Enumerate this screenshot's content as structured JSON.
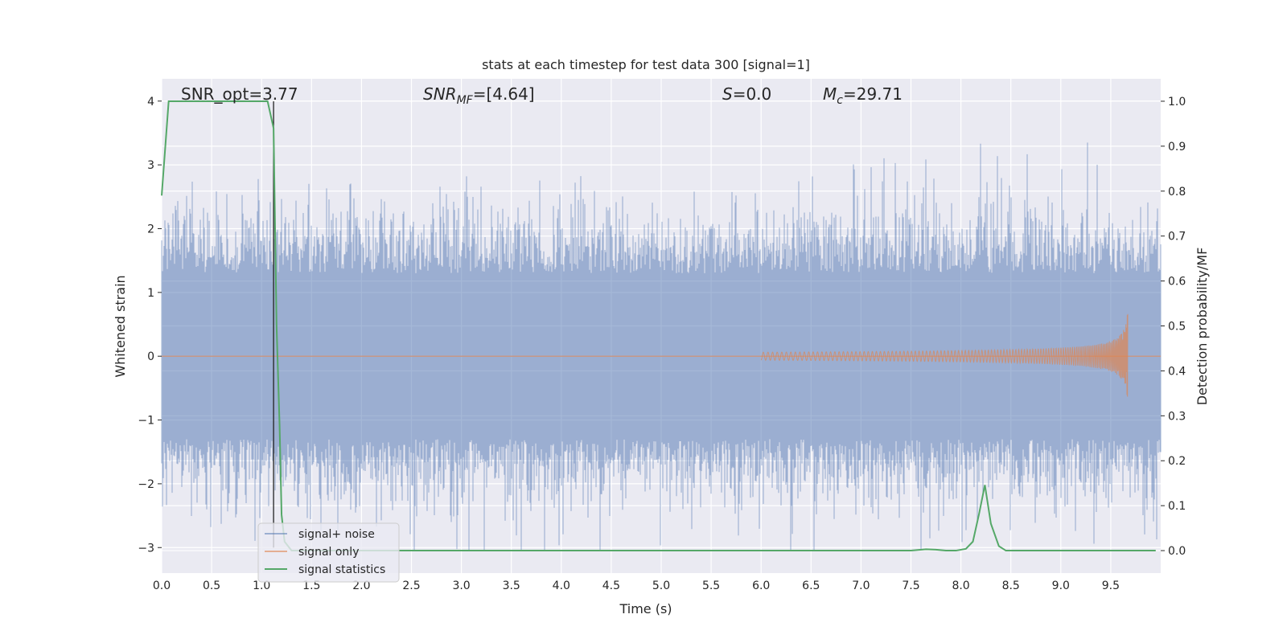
{
  "chart_data": {
    "type": "line",
    "title": "stats at each timestep for test data 300 [signal=1]",
    "xlabel": "Time (s)",
    "ylabel_left": "Whitened strain",
    "ylabel_right": "Detection probability/MF",
    "xlim": [
      0.0,
      10.0
    ],
    "ylim_left": [
      -3.4,
      4.35
    ],
    "ylim_right": [
      -0.05,
      1.05
    ],
    "x_ticks": [
      "0.0",
      "0.5",
      "1.0",
      "1.5",
      "2.0",
      "2.5",
      "3.0",
      "3.5",
      "4.0",
      "4.5",
      "5.0",
      "5.5",
      "6.0",
      "6.5",
      "7.0",
      "7.5",
      "8.0",
      "8.5",
      "9.0",
      "9.5"
    ],
    "y_ticks_left": [
      "−3",
      "−2",
      "−1",
      "0",
      "1",
      "2",
      "3",
      "4"
    ],
    "y_ticks_right": [
      "0.0",
      "0.1",
      "0.2",
      "0.3",
      "0.4",
      "0.5",
      "0.6",
      "0.7",
      "0.8",
      "0.9",
      "1.0"
    ],
    "grid": true,
    "legend_position": "bottom-left",
    "annotations": {
      "snr_opt": "SNR_opt=3.77",
      "snr_mf_label": "SNR",
      "snr_mf_sub": "MF",
      "snr_mf_value": "=[4.64]",
      "s_label": "S",
      "s_value": "=0.0",
      "mc_label": "M",
      "mc_sub": "c",
      "mc_value": "=29.71"
    },
    "vertical_marker_x": 1.12,
    "series": [
      {
        "name": "signal+ noise",
        "axis": "left",
        "color": "#4c72b0",
        "description_stats": {
          "band_low": -1.5,
          "band_high": 1.5,
          "max_peak": 3.35,
          "min_peak": -3.05
        }
      },
      {
        "name": "signal only",
        "axis": "left",
        "color": "#dd8452",
        "chirp": {
          "start_x": 6.0,
          "end_x": 9.67,
          "max_amplitude": 0.75
        }
      },
      {
        "name": "signal statistics",
        "axis": "right",
        "color": "#55a868",
        "x": [
          0.0,
          0.07,
          0.15,
          0.3,
          0.5,
          0.8,
          1.0,
          1.06,
          1.12,
          1.15,
          1.18,
          1.2,
          1.23,
          1.3,
          1.5,
          2.0,
          3.0,
          4.0,
          5.0,
          6.0,
          7.0,
          7.5,
          7.65,
          7.75,
          7.85,
          7.95,
          8.05,
          8.12,
          8.18,
          8.24,
          8.3,
          8.38,
          8.45,
          8.6,
          9.0,
          9.5,
          9.95
        ],
        "y": [
          0.79,
          1.0,
          1.0,
          1.0,
          1.0,
          1.0,
          1.0,
          1.0,
          0.94,
          0.5,
          0.28,
          0.08,
          0.02,
          0.0,
          0.0,
          0.0,
          0.0,
          0.0,
          0.0,
          0.0,
          0.0,
          0.0,
          0.003,
          0.002,
          0.0,
          0.0,
          0.004,
          0.02,
          0.08,
          0.146,
          0.06,
          0.01,
          0.0,
          0.0,
          0.0,
          0.0,
          0.0
        ]
      }
    ]
  }
}
